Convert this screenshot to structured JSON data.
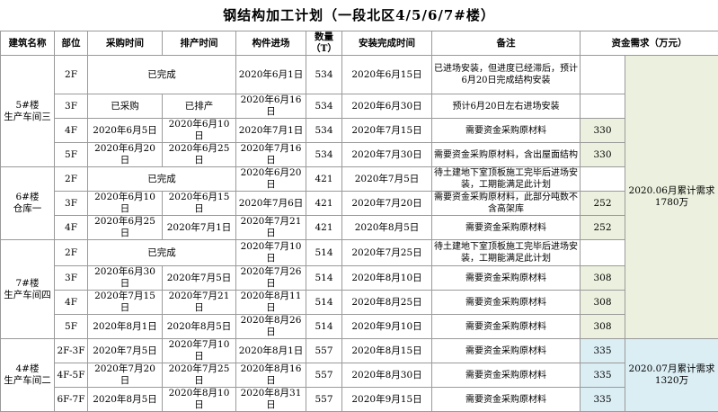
{
  "title": "钢结构加工计划（一段北区4/5/6/7#楼）",
  "headers": [
    "建筑名称",
    "部位",
    "采购时间",
    "排产时间",
    "构件进场",
    "数量（T）",
    "安装完成时间",
    "备注",
    "资金需求（万元）"
  ],
  "groups": [
    {
      "building": [
        "5#楼",
        "生产车间三"
      ],
      "rows": [
        {
          "part": "2F",
          "status": "已完成",
          "arrival": "2020年6月1日",
          "qty": 534,
          "install": "2020年6月15日",
          "note": "已进场安装，但进度已经滞后，预计6月20日完成结构安装"
        },
        {
          "part": "3F",
          "purchase": "已采购",
          "schedule": "已排产",
          "arrival": "2020年6月16日",
          "qty": 534,
          "install": "2020年6月30日",
          "note": "预计6月20日左右进场安装"
        },
        {
          "part": "4F",
          "purchase": "2020年6月5日",
          "schedule": "2020年6月10日",
          "arrival": "2020年7月1日",
          "qty": 534,
          "install": "2020年7月15日",
          "note": "需要资金采购原材料",
          "funding": 330
        },
        {
          "part": "5F",
          "purchase": "2020年6月20日",
          "schedule": "2020年6月25日",
          "arrival": "2020年7月16日",
          "qty": 534,
          "install": "2020年7月30日",
          "note": "需要资金采购原材料，含出屋面结构",
          "funding": 330
        }
      ]
    },
    {
      "building": [
        "6#楼",
        "仓库一"
      ],
      "rows": [
        {
          "part": "2F",
          "status": "已完成",
          "arrival": "2020年6月20日",
          "qty": 421,
          "install": "2020年7月5日",
          "note": "待土建地下室顶板施工完毕后进场安装，工期能满足此计划"
        },
        {
          "part": "3F",
          "purchase": "2020年6月10日",
          "schedule": "2020年6月15日",
          "arrival": "2020年7月6日",
          "qty": 421,
          "install": "2020年7月20日",
          "note": "需要资金采购原材料，此部分吨数不含高架库",
          "funding": 252
        },
        {
          "part": "4F",
          "purchase": "2020年6月25日",
          "schedule": "2020年7月1日",
          "arrival": "2020年7月21日",
          "qty": 421,
          "install": "2020年8月5日",
          "note": "需要资金采购原材料",
          "funding": 252
        }
      ]
    },
    {
      "building": [
        "7#楼",
        "生产车间四"
      ],
      "rows": [
        {
          "part": "2F",
          "status": "已完成",
          "arrival": "2020年7月10日",
          "qty": 514,
          "install": "2020年7月25日",
          "note": "待土建地下室顶板施工完毕后进场安装，工期能满足此计划"
        },
        {
          "part": "3F",
          "purchase": "2020年6月30日",
          "schedule": "2020年7月5日",
          "arrival": "2020年7月26日",
          "qty": 514,
          "install": "2020年8月10日",
          "note": "需要资金采购原材料",
          "funding": 308
        },
        {
          "part": "4F",
          "purchase": "2020年7月15日",
          "schedule": "2020年7月21日",
          "arrival": "2020年8月11日",
          "qty": 514,
          "install": "2020年8月25日",
          "note": "需要资金采购原材料",
          "funding": 308
        },
        {
          "part": "5F",
          "purchase": "2020年8月1日",
          "schedule": "2020年8月5日",
          "arrival": "2020年8月26日",
          "qty": 514,
          "install": "2020年9月10日",
          "note": "需要资金采购原材料",
          "funding": 308
        }
      ]
    },
    {
      "building": [
        "4#楼",
        "生产车间二"
      ],
      "rows": [
        {
          "part": "2F-3F",
          "purchase": "2020年7月5日",
          "schedule": "2020年7月10日",
          "arrival": "2020年8月1日",
          "qty": 557,
          "install": "2020年8月15日",
          "note": "需要资金采购原材料",
          "funding": 335
        },
        {
          "part": "4F-5F",
          "purchase": "2020年7月20日",
          "schedule": "2020年7月25日",
          "arrival": "2020年8月16日",
          "qty": 557,
          "install": "2020年8月30日",
          "note": "需要资金采购原材料",
          "funding": 335
        },
        {
          "part": "6F-7F",
          "purchase": "2020年8月5日",
          "schedule": "2020年8月10日",
          "arrival": "2020年8月31日",
          "qty": 557,
          "install": "2020年9月15日",
          "note": "需要资金采购原材料",
          "funding": 335
        }
      ]
    }
  ],
  "totals": [
    {
      "label": "2020.06月累计需求",
      "amount": "1780万"
    },
    {
      "label": "2020.07月累计需求",
      "amount": "1320万"
    }
  ]
}
